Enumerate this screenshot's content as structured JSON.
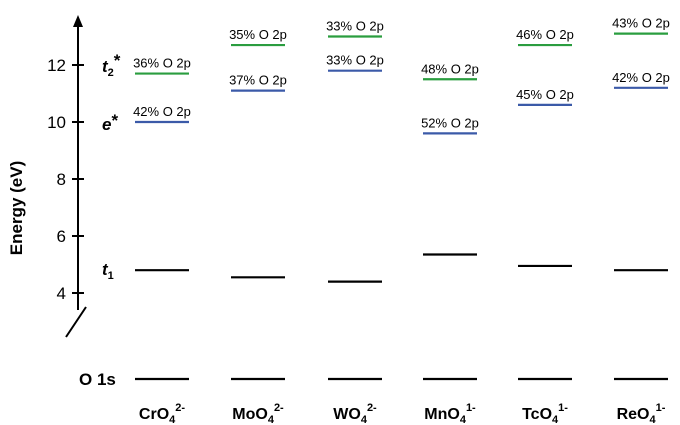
{
  "chart_data": {
    "type": "energy-level-diagram",
    "ylabel": "Energy (eV)",
    "ylim": [
      2.5,
      13.5
    ],
    "yticks": [
      4,
      6,
      8,
      10,
      12
    ],
    "axis_break": true,
    "categories": [
      {
        "base": "CrO",
        "sub": "4",
        "sup": "2-"
      },
      {
        "base": "MoO",
        "sub": "4",
        "sup": "2-"
      },
      {
        "base": "WO",
        "sub": "4",
        "sup": "2-"
      },
      {
        "base": "MnO",
        "sub": "4",
        "sup": "1-"
      },
      {
        "base": "TcO",
        "sub": "4",
        "sup": "1-"
      },
      {
        "base": "ReO",
        "sub": "4",
        "sup": "1-"
      }
    ],
    "levels": {
      "t2star": {
        "label_main": "t",
        "label_sub": "2",
        "label_sup": "*",
        "color": "#2a9d3f",
        "values": [
          11.7,
          12.7,
          13.0,
          11.5,
          12.7,
          13.1
        ],
        "annotations": [
          "36% O 2p",
          "35% O 2p",
          "33% O 2p",
          "48% O 2p",
          "46% O 2p",
          "43% O 2p"
        ]
      },
      "estar": {
        "label_main": "e",
        "label_sup": "*",
        "color": "#3b5aa8",
        "values": [
          10.0,
          11.1,
          11.8,
          9.6,
          10.6,
          11.2
        ],
        "annotations": [
          "42% O 2p",
          "37% O 2p",
          "33% O 2p",
          "52% O 2p",
          "45% O 2p",
          "42% O 2p"
        ]
      },
      "t1": {
        "label_main": "t",
        "label_sub": "1",
        "color": "#000000",
        "values": [
          4.8,
          4.55,
          4.4,
          5.35,
          4.95,
          4.8
        ]
      },
      "o1s": {
        "label": "O 1s",
        "color": "#000000"
      }
    }
  }
}
